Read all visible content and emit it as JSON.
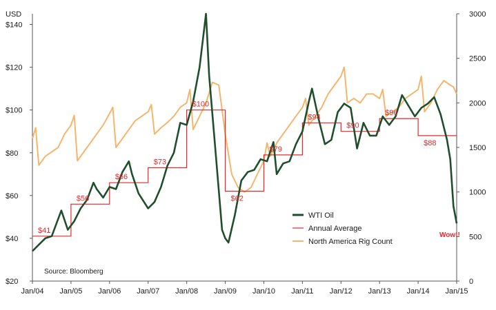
{
  "chart_data": {
    "type": "line",
    "colors": {
      "wti": "#1f4e2c",
      "annual_average": "#e8262a",
      "rig_count": "#f5b66b"
    },
    "x_tick_labels": [
      "Jan/04",
      "Jan/05",
      "Jan/06",
      "Jan/07",
      "Jan/08",
      "Jan/09",
      "Jan/10",
      "Jan/11",
      "Jan/12",
      "Jan/13",
      "Jan/14",
      "Jan/15"
    ],
    "left_axis": {
      "unit_label": "USD",
      "ylim": [
        20,
        145
      ],
      "tick_labels": [
        "$20",
        "$40",
        "$60",
        "$80",
        "$100",
        "$120",
        "$140"
      ]
    },
    "right_axis": {
      "ylim": [
        0,
        3000
      ],
      "tick_labels": [
        "0",
        "500",
        "1000",
        "1500",
        "2000",
        "2500",
        "3000"
      ]
    },
    "grid": false,
    "legend_position": "lower-right",
    "legend": [
      "WTI Oil",
      "Annual Average",
      "North America Rig Count"
    ],
    "source": "Source: Bloomberg",
    "annotation": "Wow!!",
    "series": [
      {
        "name": "WTI Oil",
        "axis": "left",
        "x": [
          "2004-01",
          "2004-03",
          "2004-05",
          "2004-07",
          "2004-08",
          "2004-10",
          "2004-12",
          "2005-02",
          "2005-04",
          "2005-06",
          "2005-08",
          "2005-09",
          "2005-11",
          "2006-01",
          "2006-03",
          "2006-05",
          "2006-07",
          "2006-08",
          "2006-10",
          "2007-01",
          "2007-03",
          "2007-05",
          "2007-07",
          "2007-09",
          "2007-11",
          "2008-01",
          "2008-03",
          "2008-05",
          "2008-07",
          "2008-08",
          "2008-10",
          "2008-12",
          "2009-01",
          "2009-02",
          "2009-04",
          "2009-06",
          "2009-08",
          "2009-10",
          "2009-12",
          "2010-02",
          "2010-04",
          "2010-05",
          "2010-07",
          "2010-09",
          "2010-11",
          "2011-01",
          "2011-03",
          "2011-04",
          "2011-06",
          "2011-08",
          "2011-10",
          "2011-12",
          "2012-02",
          "2012-04",
          "2012-06",
          "2012-08",
          "2012-10",
          "2012-12",
          "2013-02",
          "2013-04",
          "2013-06",
          "2013-08",
          "2013-10",
          "2013-12",
          "2014-02",
          "2014-04",
          "2014-06",
          "2014-08",
          "2014-10",
          "2014-11",
          "2014-12",
          "2015-01"
        ],
        "values": [
          34,
          37,
          40,
          41,
          45,
          53,
          44,
          48,
          54,
          58,
          66,
          63,
          59,
          64,
          63,
          71,
          76,
          70,
          61,
          54,
          57,
          64,
          74,
          80,
          94,
          93,
          104,
          120,
          145,
          116,
          80,
          44,
          40,
          38,
          51,
          67,
          71,
          72,
          77,
          76,
          85,
          70,
          75,
          76,
          84,
          90,
          104,
          110,
          96,
          84,
          86,
          99,
          103,
          101,
          82,
          94,
          88,
          88,
          97,
          93,
          97,
          107,
          102,
          97,
          101,
          103,
          106,
          98,
          86,
          77,
          55,
          47
        ]
      },
      {
        "name": "Annual Average",
        "axis": "left",
        "x": [
          2004,
          2005,
          2006,
          2007,
          2008,
          2009,
          2010,
          2011,
          2012,
          2013,
          2014
        ],
        "values": [
          41,
          56,
          66,
          73,
          100,
          62,
          79,
          94,
          90,
          96,
          88
        ],
        "labels": [
          "$41",
          "$56",
          "$66",
          "$73",
          "$100",
          "$62",
          "$79",
          "$94",
          "$90",
          "$96",
          "$88"
        ]
      },
      {
        "name": "North America Rig Count",
        "axis": "right",
        "x": [
          "2004-01",
          "2004-02",
          "2004-03",
          "2004-05",
          "2004-07",
          "2004-09",
          "2004-11",
          "2005-01",
          "2005-02",
          "2005-03",
          "2005-05",
          "2005-07",
          "2005-09",
          "2005-11",
          "2006-01",
          "2006-02",
          "2006-03",
          "2006-05",
          "2006-07",
          "2006-09",
          "2006-11",
          "2007-01",
          "2007-02",
          "2007-03",
          "2007-05",
          "2007-07",
          "2007-09",
          "2007-11",
          "2008-01",
          "2008-02",
          "2008-03",
          "2008-05",
          "2008-07",
          "2008-09",
          "2008-11",
          "2009-01",
          "2009-03",
          "2009-05",
          "2009-07",
          "2009-09",
          "2009-11",
          "2010-01",
          "2010-02",
          "2010-03",
          "2010-05",
          "2010-07",
          "2010-09",
          "2010-11",
          "2011-01",
          "2011-02",
          "2011-03",
          "2011-05",
          "2011-07",
          "2011-09",
          "2011-11",
          "2012-01",
          "2012-02",
          "2012-03",
          "2012-05",
          "2012-07",
          "2012-09",
          "2012-11",
          "2013-01",
          "2013-02",
          "2013-03",
          "2013-05",
          "2013-07",
          "2013-09",
          "2013-11",
          "2014-01",
          "2014-02",
          "2014-03",
          "2014-05",
          "2014-07",
          "2014-09",
          "2014-11",
          "2014-12",
          "2015-01"
        ],
        "values": [
          1600,
          1720,
          1300,
          1400,
          1450,
          1500,
          1650,
          1750,
          1860,
          1350,
          1450,
          1550,
          1650,
          1750,
          1880,
          1950,
          1500,
          1600,
          1700,
          1800,
          1850,
          1900,
          1980,
          1650,
          1720,
          1780,
          1850,
          1950,
          2000,
          2150,
          1700,
          1850,
          2000,
          2230,
          2200,
          1650,
          1200,
          1050,
          1000,
          1050,
          1200,
          1350,
          1550,
          1400,
          1550,
          1650,
          1750,
          1850,
          1950,
          2050,
          1750,
          1850,
          1950,
          2100,
          2200,
          2300,
          2400,
          2000,
          2050,
          2000,
          2100,
          2100,
          2050,
          2150,
          1850,
          1900,
          1950,
          2050,
          2100,
          2150,
          2300,
          1900,
          2000,
          2150,
          2250,
          2200,
          2180,
          2100
        ]
      }
    ]
  }
}
